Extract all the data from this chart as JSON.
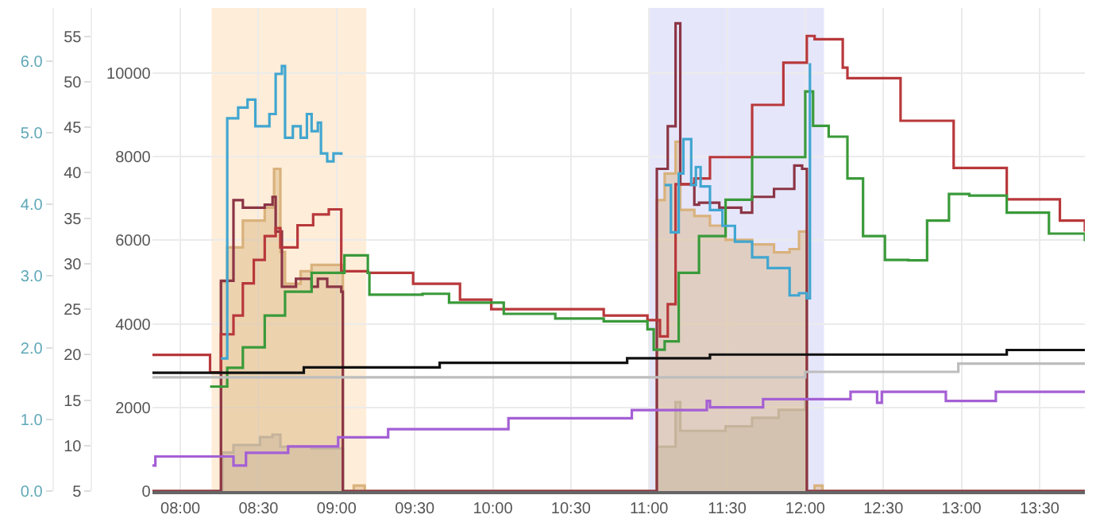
{
  "chart_data": {
    "type": "step",
    "grid": true,
    "xlim": [
      7.82,
      13.79
    ],
    "xticks": [
      {
        "value": 8,
        "label": "08:00"
      },
      {
        "value": 8.5,
        "label": "08:30"
      },
      {
        "value": 9,
        "label": "09:00"
      },
      {
        "value": 9.5,
        "label": "09:30"
      },
      {
        "value": 10,
        "label": "10:00"
      },
      {
        "value": 10.5,
        "label": "10:30"
      },
      {
        "value": 11,
        "label": "11:00"
      },
      {
        "value": 11.5,
        "label": "11:30"
      },
      {
        "value": 12,
        "label": "12:00"
      },
      {
        "value": 12.5,
        "label": "12:30"
      },
      {
        "value": 13,
        "label": "13:00"
      },
      {
        "value": 13.5,
        "label": "13:30"
      }
    ],
    "ylim": [
      0,
      11560
    ],
    "yticks": [
      0,
      2000,
      4000,
      6000,
      8000,
      10000
    ],
    "y2lim": [
      5,
      58.1
    ],
    "y2ticks": [
      5,
      10,
      15,
      20,
      25,
      30,
      35,
      40,
      45,
      50,
      55
    ],
    "y3lim": [
      0,
      6.74
    ],
    "y3ticks": [
      {
        "value": 0,
        "label": "0.0"
      },
      {
        "value": 1,
        "label": "1.0"
      },
      {
        "value": 2,
        "label": "2.0"
      },
      {
        "value": 3,
        "label": "3.0"
      },
      {
        "value": 4,
        "label": "4.0"
      },
      {
        "value": 5,
        "label": "5.0"
      },
      {
        "value": 6,
        "label": "6.0"
      }
    ],
    "bands": [
      {
        "axis": "x",
        "from": 8.2,
        "to": 9.19,
        "color": "#fde6c8"
      },
      {
        "axis": "x",
        "from": 11.0,
        "to": 12.12,
        "color": "#dcdcfa"
      }
    ],
    "series": [
      {
        "type": "area",
        "color": "#b5b5b5",
        "x": [
          7.82,
          8.26,
          8.27,
          8.34,
          8.51,
          8.59,
          8.64,
          8.84,
          9.04,
          11.05,
          11.17,
          11.2,
          11.49,
          11.66,
          11.83,
          12.0,
          12.01,
          13.79
        ],
        "values": [
          0,
          0,
          920,
          1100,
          1290,
          1350,
          1060,
          1020,
          0,
          1060,
          2130,
          1440,
          1550,
          1750,
          1940,
          2190,
          0,
          0
        ]
      },
      {
        "type": "area",
        "color": "#d9b27c",
        "x": [
          7.82,
          8.26,
          8.3,
          8.4,
          8.54,
          8.6,
          8.64,
          8.67,
          8.77,
          8.84,
          9.04,
          9.11,
          9.18,
          11.05,
          11.1,
          11.17,
          11.2,
          11.29,
          11.39,
          11.49,
          11.66,
          11.8,
          11.9,
          11.96,
          12.01,
          12.06,
          12.11,
          13.79
        ],
        "values": [
          0,
          5000,
          5830,
          6470,
          6780,
          7710,
          5720,
          4960,
          5260,
          5410,
          0,
          130,
          0,
          6960,
          7600,
          8360,
          6730,
          6580,
          6350,
          6010,
          5900,
          5710,
          5790,
          6210,
          0,
          130,
          0,
          0
        ]
      },
      {
        "color": "#8b3545",
        "x": [
          7.82,
          8.26,
          8.34,
          8.4,
          8.54,
          8.59,
          8.61,
          8.65,
          8.74,
          8.84,
          8.88,
          8.94,
          9.03,
          9.04,
          11.05,
          11.12,
          11.17,
          11.2,
          11.29,
          11.32,
          11.45,
          11.59,
          11.66,
          11.8,
          11.93,
          11.98,
          12.01,
          13.79
        ],
        "values": [
          0,
          5030,
          6960,
          6780,
          6850,
          7040,
          6210,
          4890,
          5080,
          4890,
          5080,
          4890,
          4770,
          0,
          7710,
          8730,
          11190,
          7340,
          6850,
          6900,
          6780,
          6660,
          7040,
          7230,
          7790,
          7710,
          0,
          0
        ]
      },
      {
        "color": "#b8383b",
        "x": [
          7.82,
          8.19,
          8.26,
          8.34,
          8.4,
          8.47,
          8.54,
          8.61,
          8.64,
          8.75,
          8.85,
          8.95,
          9.03,
          9.2,
          9.49,
          9.79,
          9.99,
          10.71,
          10.99,
          11.07,
          11.12,
          11.17,
          11.29,
          11.39,
          11.66,
          11.86,
          12.01,
          12.06,
          12.24,
          12.27,
          12.61,
          12.95,
          13.29,
          13.63,
          13.79
        ],
        "values": [
          3260,
          2840,
          3750,
          4200,
          4970,
          5530,
          6100,
          6290,
          5830,
          6360,
          6620,
          6740,
          5260,
          5220,
          4960,
          4580,
          4350,
          4200,
          4090,
          3700,
          4470,
          7340,
          7480,
          7990,
          9240,
          10250,
          10890,
          10810,
          10130,
          9880,
          8860,
          7730,
          6980,
          6470,
          6210
        ]
      },
      {
        "color": "#3a9a3a",
        "x": [
          8.19,
          8.3,
          8.4,
          8.54,
          8.67,
          8.84,
          9.05,
          9.2,
          9.21,
          9.55,
          9.72,
          10.07,
          10.4,
          10.71,
          10.99,
          11.03,
          11.1,
          11.19,
          11.32,
          11.49,
          11.66,
          12.0,
          12.05,
          12.15,
          12.27,
          12.37,
          12.51,
          12.66,
          12.78,
          12.92,
          13.05,
          13.29,
          13.56,
          13.79
        ],
        "values": [
          2500,
          2950,
          3440,
          4200,
          4770,
          5220,
          5640,
          5220,
          4700,
          4720,
          4510,
          4240,
          4130,
          4060,
          3870,
          3380,
          3580,
          5220,
          6100,
          6970,
          7990,
          9560,
          8740,
          8480,
          7480,
          6100,
          5530,
          5520,
          6470,
          7110,
          7070,
          6660,
          6160,
          5980
        ]
      },
      {
        "color": "#41a6d0",
        "axis": "y3",
        "x": [
          8.26,
          8.3,
          8.37,
          8.43,
          8.48,
          8.57,
          8.61,
          8.65,
          8.67,
          8.72,
          8.77,
          8.81,
          8.84,
          8.88,
          8.9,
          8.94,
          8.98,
          9.03,
          10,
          11.1,
          11.14,
          11.19,
          11.22,
          11.27,
          11.3,
          11.33,
          11.39,
          11.47,
          11.55,
          11.66,
          11.76,
          11.9,
          11.96,
          12.01,
          12.03
        ],
        "values": [
          1.85,
          5.2,
          5.35,
          5.46,
          5.09,
          5.26,
          5.82,
          5.93,
          4.93,
          5.09,
          4.93,
          5.26,
          5.02,
          5.14,
          4.71,
          4.6,
          4.71,
          4.69,
          null,
          4.27,
          3.61,
          4.43,
          4.91,
          4.27,
          4.52,
          4.25,
          3.92,
          3.7,
          3.48,
          3.26,
          3.11,
          2.73,
          2.76,
          2.69,
          5.97
        ]
      },
      {
        "color": "#bdbdbd",
        "axis": "y2",
        "x": [
          7.82,
          12.0,
          12.98,
          13.79
        ],
        "values": [
          17.5,
          18.1,
          19.0,
          19.0
        ]
      },
      {
        "color": "#111111",
        "axis": "y2",
        "x": [
          7.82,
          8.79,
          9.66,
          10.86,
          11.39,
          13.29,
          13.79
        ],
        "values": [
          18.0,
          18.6,
          19.1,
          19.6,
          20.0,
          20.5,
          20.5
        ]
      },
      {
        "color": "#a45fd4",
        "axis": "y2",
        "x": [
          7.82,
          7.84,
          8.34,
          8.42,
          8.69,
          9.01,
          9.33,
          10.1,
          10.89,
          11.37,
          11.39,
          11.73,
          12.29,
          12.46,
          12.49,
          12.9,
          13.22,
          13.79
        ],
        "values": [
          7.8,
          8.8,
          7.8,
          9.2,
          9.9,
          10.9,
          11.8,
          13.0,
          13.9,
          14.9,
          14.2,
          15.1,
          15.9,
          14.7,
          15.9,
          14.9,
          15.9,
          15.9
        ]
      }
    ]
  }
}
